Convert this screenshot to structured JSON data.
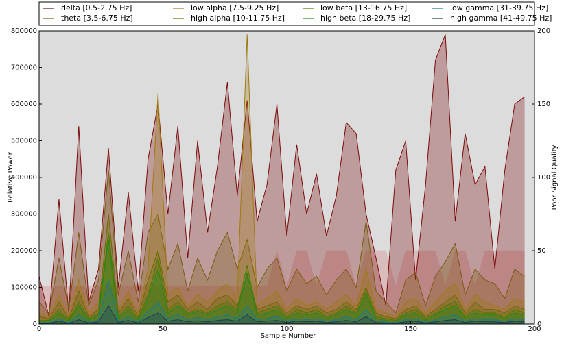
{
  "chart_data": {
    "type": "area",
    "x": [
      0,
      4,
      8,
      12,
      16,
      20,
      24,
      28,
      32,
      36,
      40,
      44,
      48,
      52,
      56,
      60,
      64,
      68,
      72,
      76,
      80,
      84,
      88,
      92,
      96,
      100,
      104,
      108,
      112,
      116,
      120,
      124,
      128,
      132,
      136,
      140,
      144,
      148,
      152,
      156,
      160,
      164,
      168,
      172,
      176,
      180,
      184,
      188,
      192,
      196
    ],
    "xlabel": "Sample Number",
    "ylabel": "Relative Power",
    "y2label": "Poor Signal Quality",
    "xlim": [
      0,
      200
    ],
    "xticks": [
      0,
      50,
      100,
      150,
      200
    ],
    "ylim": [
      0,
      800000
    ],
    "yticks": [
      0,
      100000,
      200000,
      300000,
      400000,
      500000,
      600000,
      700000,
      800000
    ],
    "y2lim": [
      0,
      200
    ],
    "y2ticks": [
      0,
      50,
      100,
      150,
      200
    ],
    "series": [
      {
        "name": "Poor Signal Quality",
        "axis": "y2",
        "color": "#d9bcbc",
        "values": [
          26,
          26,
          26,
          26,
          26,
          26,
          26,
          26,
          26,
          26,
          26,
          26,
          26,
          26,
          26,
          26,
          26,
          26,
          26,
          26,
          26,
          26,
          26,
          26,
          50,
          26,
          50,
          50,
          26,
          50,
          50,
          50,
          26,
          50,
          50,
          50,
          26,
          50,
          50,
          50,
          50,
          26,
          50,
          50,
          26,
          50,
          50,
          50,
          50,
          50
        ]
      },
      {
        "name": "delta [0.5-2.75 Hz]",
        "color": "#7a0a0a",
        "values": [
          130000,
          20000,
          340000,
          30000,
          540000,
          60000,
          150000,
          480000,
          100000,
          360000,
          90000,
          450000,
          600000,
          300000,
          540000,
          180000,
          500000,
          250000,
          430000,
          660000,
          350000,
          610000,
          280000,
          380000,
          600000,
          240000,
          490000,
          300000,
          410000,
          240000,
          350000,
          550000,
          520000,
          300000,
          180000,
          50000,
          420000,
          500000,
          120000,
          380000,
          720000,
          790000,
          280000,
          520000,
          380000,
          430000,
          150000,
          420000,
          600000,
          620000
        ]
      },
      {
        "name": "theta [3.5-6.75 Hz]",
        "color": "#7a5a10",
        "values": [
          60000,
          30000,
          180000,
          40000,
          250000,
          50000,
          120000,
          420000,
          80000,
          200000,
          60000,
          250000,
          300000,
          150000,
          220000,
          90000,
          180000,
          120000,
          200000,
          250000,
          150000,
          230000,
          100000,
          150000,
          180000,
          90000,
          150000,
          110000,
          130000,
          80000,
          120000,
          150000,
          100000,
          280000,
          90000,
          60000,
          30000,
          120000,
          140000,
          50000,
          130000,
          170000,
          220000,
          80000,
          150000,
          120000,
          110000,
          70000,
          150000,
          130000
        ]
      },
      {
        "name": "low alpha [7.5-9.25 Hz]",
        "color": "#a07a10",
        "values": [
          30000,
          20000,
          80000,
          20000,
          120000,
          30000,
          60000,
          200000,
          40000,
          90000,
          30000,
          150000,
          630000,
          80000,
          100000,
          50000,
          80000,
          60000,
          90000,
          110000,
          70000,
          790000,
          50000,
          70000,
          90000,
          40000,
          70000,
          50000,
          60000,
          40000,
          60000,
          80000,
          50000,
          150000,
          40000,
          30000,
          20000,
          60000,
          70000,
          30000,
          60000,
          90000,
          110000,
          40000,
          80000,
          60000,
          50000,
          40000,
          70000,
          60000
        ]
      },
      {
        "name": "high alpha [10-11.75 Hz]",
        "color": "#6a6a00",
        "values": [
          20000,
          15000,
          60000,
          15000,
          90000,
          20000,
          40000,
          300000,
          30000,
          70000,
          20000,
          120000,
          200000,
          60000,
          80000,
          40000,
          60000,
          40000,
          70000,
          80000,
          50000,
          130000,
          40000,
          50000,
          60000,
          30000,
          50000,
          40000,
          50000,
          30000,
          40000,
          60000,
          40000,
          100000,
          30000,
          20000,
          15000,
          40000,
          50000,
          20000,
          40000,
          60000,
          80000,
          30000,
          60000,
          40000,
          40000,
          30000,
          50000,
          40000
        ]
      },
      {
        "name": "low beta [13-16.75 Hz]",
        "color": "#4a7a00",
        "values": [
          10000,
          10000,
          40000,
          10000,
          60000,
          15000,
          30000,
          250000,
          20000,
          50000,
          15000,
          80000,
          180000,
          40000,
          60000,
          30000,
          40000,
          30000,
          50000,
          60000,
          40000,
          160000,
          30000,
          40000,
          50000,
          20000,
          40000,
          30000,
          40000,
          20000,
          30000,
          50000,
          30000,
          90000,
          20000,
          15000,
          10000,
          30000,
          40000,
          15000,
          30000,
          50000,
          60000,
          20000,
          40000,
          30000,
          30000,
          20000,
          40000,
          30000
        ]
      },
      {
        "name": "high beta [18-29.75 Hz]",
        "color": "#1f8a1f",
        "values": [
          8000,
          8000,
          30000,
          8000,
          50000,
          10000,
          25000,
          230000,
          15000,
          40000,
          10000,
          70000,
          150000,
          30000,
          50000,
          25000,
          35000,
          25000,
          40000,
          50000,
          30000,
          140000,
          25000,
          30000,
          40000,
          15000,
          30000,
          25000,
          30000,
          15000,
          25000,
          40000,
          25000,
          80000,
          15000,
          10000,
          8000,
          25000,
          30000,
          10000,
          25000,
          40000,
          50000,
          15000,
          30000,
          25000,
          25000,
          15000,
          30000,
          25000
        ]
      },
      {
        "name": "low gamma [31-39.75 Hz]",
        "color": "#1a7a8a",
        "values": [
          4000,
          4000,
          15000,
          4000,
          25000,
          5000,
          12000,
          120000,
          8000,
          20000,
          5000,
          35000,
          60000,
          15000,
          25000,
          12000,
          18000,
          12000,
          20000,
          25000,
          15000,
          50000,
          12000,
          15000,
          20000,
          8000,
          15000,
          12000,
          15000,
          8000,
          12000,
          20000,
          12000,
          40000,
          8000,
          5000,
          4000,
          12000,
          15000,
          5000,
          12000,
          20000,
          25000,
          8000,
          15000,
          12000,
          12000,
          8000,
          15000,
          12000
        ]
      },
      {
        "name": "high gamma [41-49.75 Hz]",
        "color": "#1a3a5a",
        "values": [
          2000,
          2000,
          8000,
          2000,
          12000,
          3000,
          6000,
          50000,
          4000,
          10000,
          3000,
          18000,
          30000,
          8000,
          12000,
          6000,
          9000,
          6000,
          10000,
          12000,
          8000,
          25000,
          6000,
          8000,
          10000,
          4000,
          8000,
          6000,
          8000,
          4000,
          6000,
          10000,
          6000,
          20000,
          4000,
          3000,
          2000,
          6000,
          8000,
          3000,
          6000,
          10000,
          12000,
          4000,
          8000,
          6000,
          6000,
          4000,
          8000,
          6000
        ]
      }
    ]
  }
}
